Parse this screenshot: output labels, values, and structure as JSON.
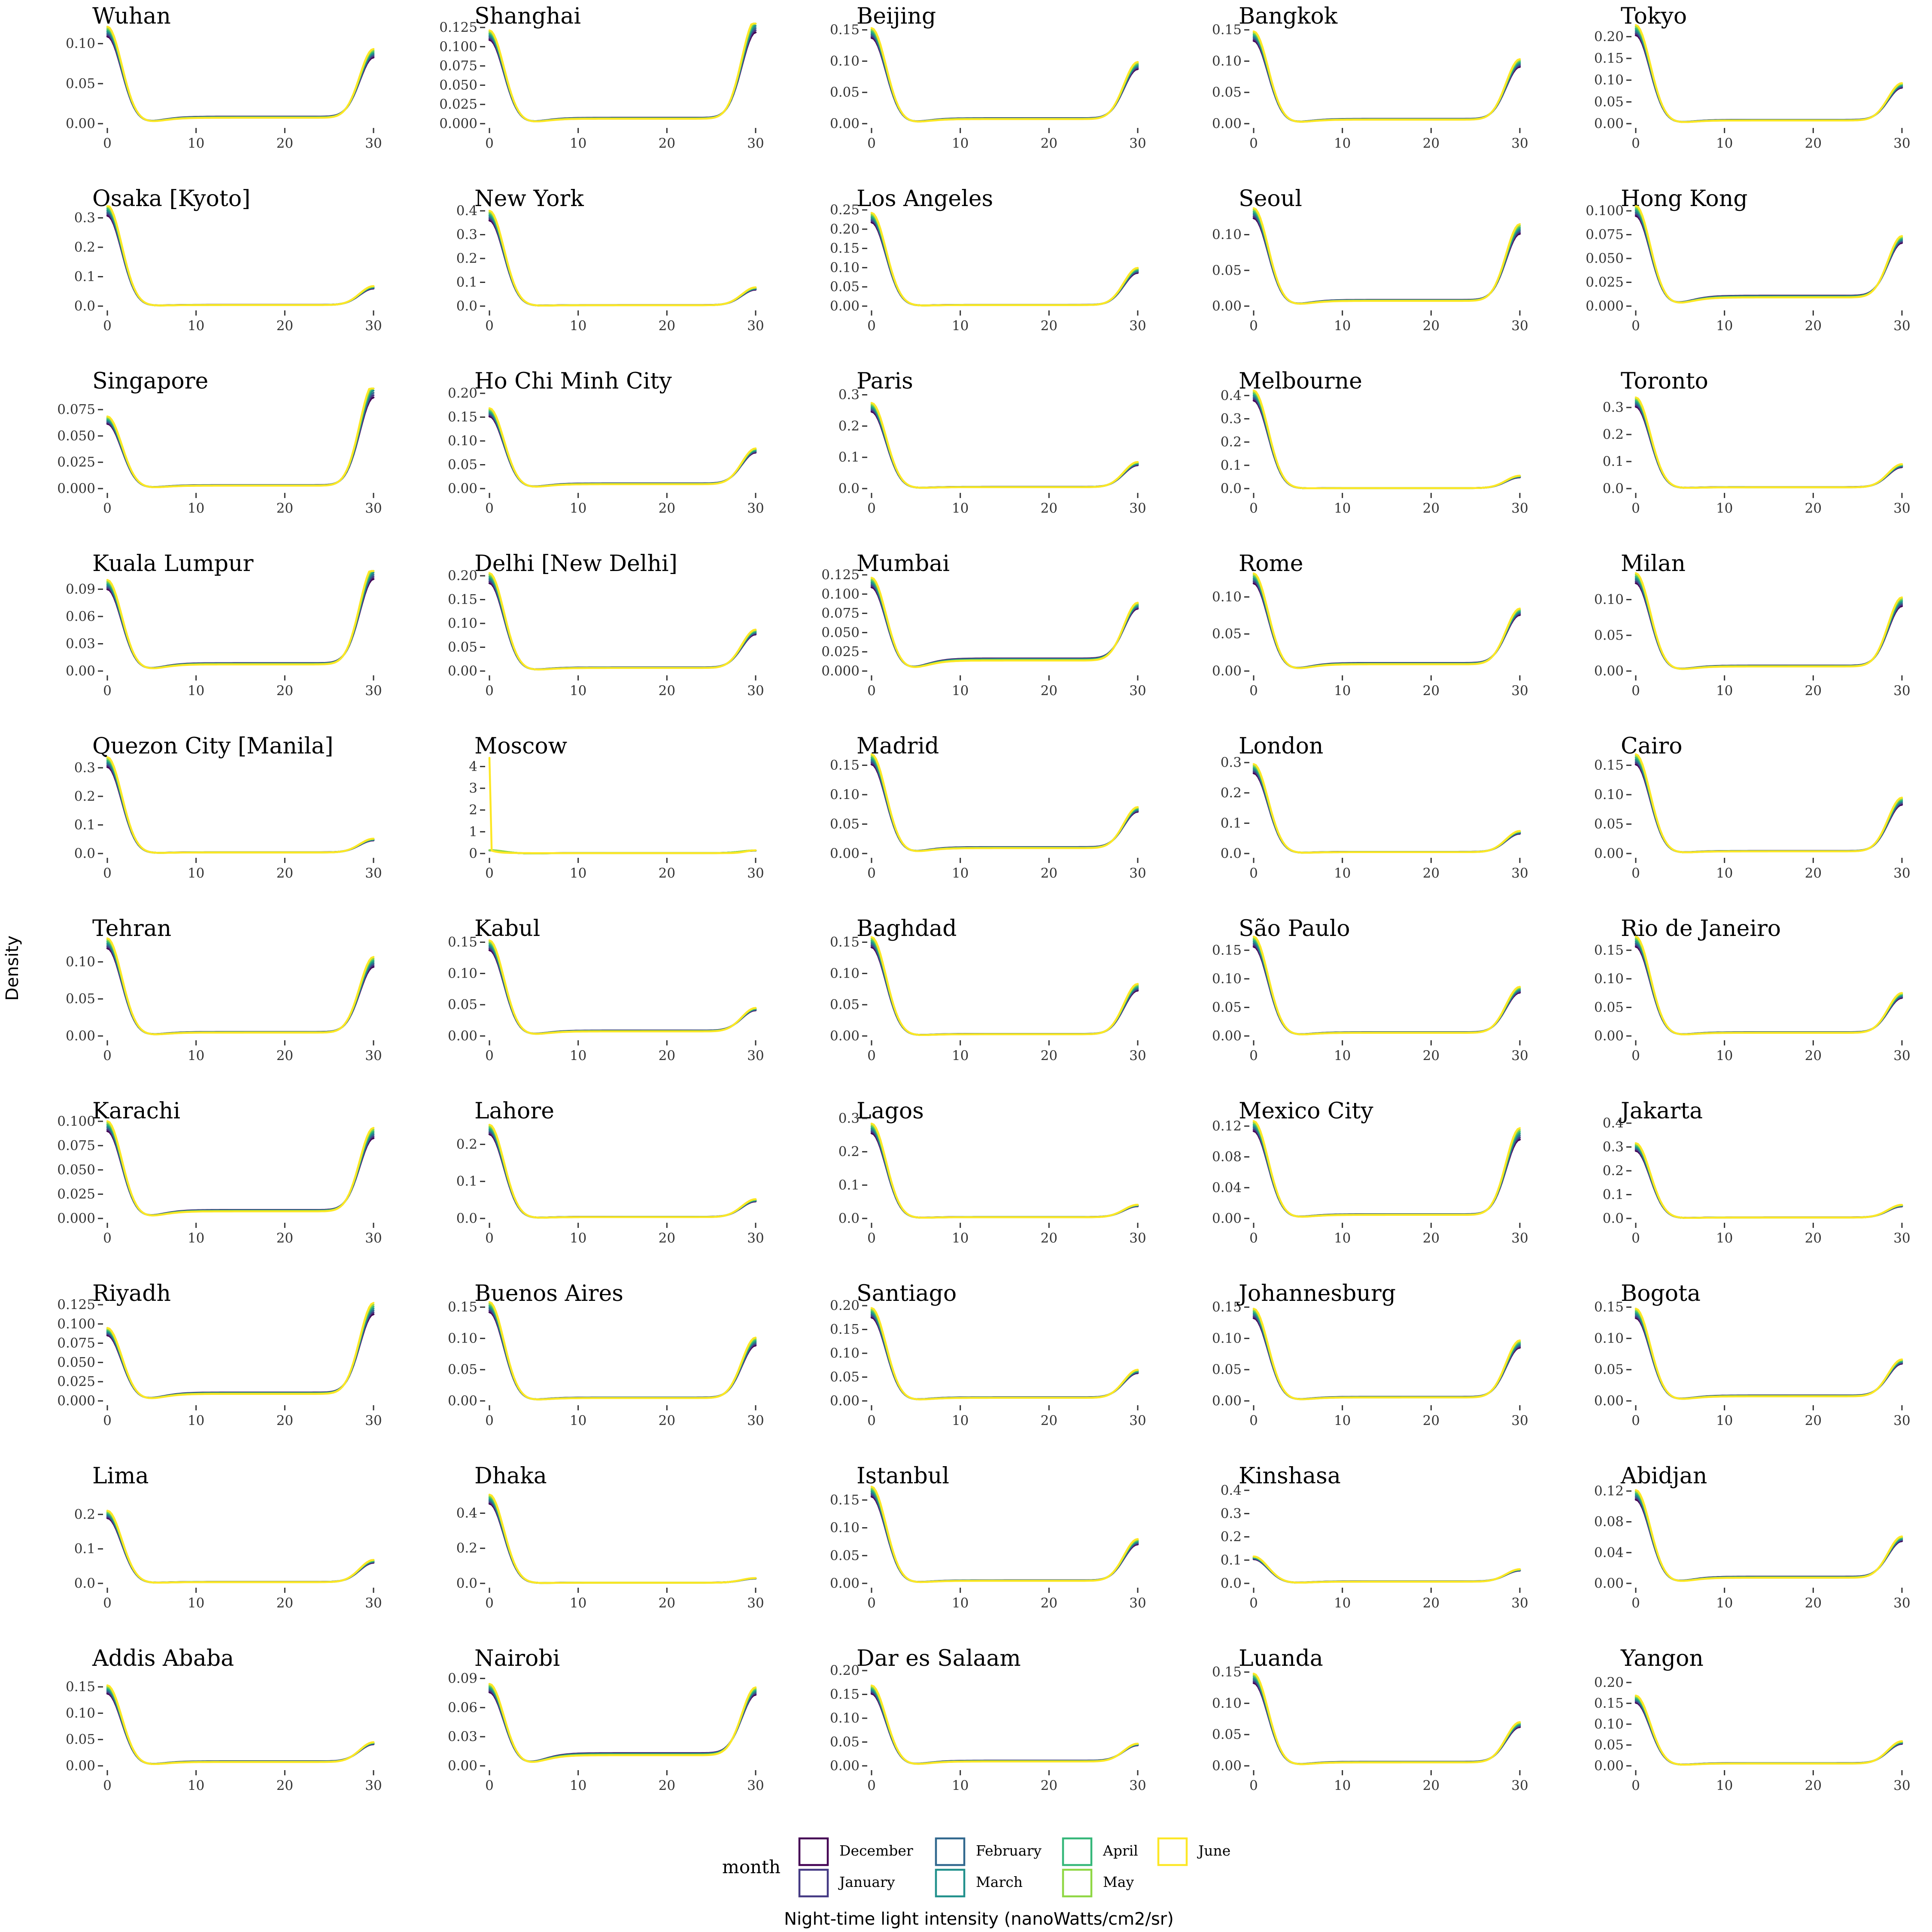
{
  "chart_data": {
    "type": "line",
    "xlabel": "Night-time light intensity (nanoWatts/cm2/sr)",
    "ylabel": "Density",
    "xlim": [
      0,
      30
    ],
    "x_ticks": [
      0,
      10,
      20,
      30
    ],
    "grid": false,
    "legend": {
      "title": "month",
      "placement": "bottom",
      "entries": [
        "December",
        "January",
        "February",
        "March",
        "April",
        "May",
        "June"
      ]
    },
    "series_colors": {
      "December": "#440154",
      "January": "#443983",
      "February": "#31688E",
      "March": "#21908C",
      "April": "#35B779",
      "May": "#8FD744",
      "June": "#FDE725"
    },
    "panels": [
      {
        "title": "Wuhan",
        "y_ticks": [
          "0.00",
          "0.05",
          "0.10"
        ],
        "ymax": 0.125,
        "left": 0.115,
        "mid": 0.008,
        "right": 0.08
      },
      {
        "title": "Shanghai",
        "y_ticks": [
          "0.000",
          "0.025",
          "0.050",
          "0.075",
          "0.100",
          "0.125"
        ],
        "ymax": 0.13,
        "left": 0.115,
        "mid": 0.007,
        "right": 0.12
      },
      {
        "title": "Beijing",
        "y_ticks": [
          "0.00",
          "0.05",
          "0.10",
          "0.15"
        ],
        "ymax": 0.16,
        "left": 0.145,
        "mid": 0.008,
        "right": 0.085
      },
      {
        "title": "Bangkok",
        "y_ticks": [
          "0.00",
          "0.05",
          "0.10",
          "0.15"
        ],
        "ymax": 0.16,
        "left": 0.14,
        "mid": 0.007,
        "right": 0.09
      },
      {
        "title": "Tokyo",
        "y_ticks": [
          "0.00",
          "0.05",
          "0.10",
          "0.15",
          "0.20"
        ],
        "ymax": 0.23,
        "left": 0.215,
        "mid": 0.008,
        "right": 0.08
      },
      {
        "title": "Osaka [Kyoto]",
        "y_ticks": [
          "0.0",
          "0.1",
          "0.2",
          "0.3"
        ],
        "ymax": 0.34,
        "left": 0.325,
        "mid": 0.004,
        "right": 0.06
      },
      {
        "title": "New York",
        "y_ticks": [
          "0.0",
          "0.1",
          "0.2",
          "0.3",
          "0.4"
        ],
        "ymax": 0.42,
        "left": 0.38,
        "mid": 0.004,
        "right": 0.07
      },
      {
        "title": "Los Angeles",
        "y_ticks": [
          "0.00",
          "0.05",
          "0.10",
          "0.15",
          "0.20",
          "0.25"
        ],
        "ymax": 0.26,
        "left": 0.23,
        "mid": 0.003,
        "right": 0.09
      },
      {
        "title": "Seoul",
        "y_ticks": [
          "0.00",
          "0.05",
          "0.10"
        ],
        "ymax": 0.14,
        "left": 0.13,
        "mid": 0.008,
        "right": 0.1
      },
      {
        "title": "Hong Kong",
        "y_ticks": [
          "0.000",
          "0.025",
          "0.050",
          "0.075",
          "0.100"
        ],
        "ymax": 0.105,
        "left": 0.1,
        "mid": 0.01,
        "right": 0.06
      },
      {
        "title": "Singapore",
        "y_ticks": [
          "0.000",
          "0.025",
          "0.050",
          "0.075"
        ],
        "ymax": 0.095,
        "left": 0.065,
        "mid": 0.003,
        "right": 0.09
      },
      {
        "title": "Ho Chi Minh City",
        "y_ticks": [
          "0.00",
          "0.05",
          "0.10",
          "0.15",
          "0.20"
        ],
        "ymax": 0.21,
        "left": 0.16,
        "mid": 0.01,
        "right": 0.07
      },
      {
        "title": "Paris",
        "y_ticks": [
          "0.0",
          "0.1",
          "0.2",
          "0.3"
        ],
        "ymax": 0.32,
        "left": 0.26,
        "mid": 0.005,
        "right": 0.075
      },
      {
        "title": "Melbourne",
        "y_ticks": [
          "0.0",
          "0.1",
          "0.2",
          "0.3",
          "0.4"
        ],
        "ymax": 0.43,
        "left": 0.4,
        "mid": 0.002,
        "right": 0.05
      },
      {
        "title": "Toronto",
        "y_ticks": [
          "0.0",
          "0.1",
          "0.2",
          "0.3"
        ],
        "ymax": 0.37,
        "left": 0.32,
        "mid": 0.005,
        "right": 0.08
      },
      {
        "title": "Kuala Lumpur",
        "y_ticks": [
          "0.00",
          "0.03",
          "0.06",
          "0.09"
        ],
        "ymax": 0.11,
        "left": 0.095,
        "mid": 0.008,
        "right": 0.1
      },
      {
        "title": "Delhi [New Delhi]",
        "y_ticks": [
          "0.00",
          "0.05",
          "0.10",
          "0.15",
          "0.20"
        ],
        "ymax": 0.21,
        "left": 0.195,
        "mid": 0.007,
        "right": 0.075
      },
      {
        "title": "Mumbai",
        "y_ticks": [
          "0.000",
          "0.025",
          "0.050",
          "0.075",
          "0.100",
          "0.125"
        ],
        "ymax": 0.13,
        "left": 0.115,
        "mid": 0.015,
        "right": 0.07
      },
      {
        "title": "Rome",
        "y_ticks": [
          "0.00",
          "0.05",
          "0.10"
        ],
        "ymax": 0.135,
        "left": 0.125,
        "mid": 0.01,
        "right": 0.07
      },
      {
        "title": "Milan",
        "y_ticks": [
          "0.00",
          "0.05",
          "0.10"
        ],
        "ymax": 0.14,
        "left": 0.13,
        "mid": 0.007,
        "right": 0.09
      },
      {
        "title": "Quezon City [Manila]",
        "y_ticks": [
          "0.0",
          "0.1",
          "0.2",
          "0.3"
        ],
        "ymax": 0.35,
        "left": 0.32,
        "mid": 0.004,
        "right": 0.045
      },
      {
        "title": "Moscow",
        "y_ticks": [
          "0",
          "1",
          "2",
          "3",
          "4"
        ],
        "ymax": 4.6,
        "left": 0.15,
        "mid": 0.02,
        "right": 0.12,
        "spike": 4.4
      },
      {
        "title": "Madrid",
        "y_ticks": [
          "0.00",
          "0.05",
          "0.10",
          "0.15"
        ],
        "ymax": 0.17,
        "left": 0.16,
        "mid": 0.01,
        "right": 0.065
      },
      {
        "title": "London",
        "y_ticks": [
          "0.0",
          "0.1",
          "0.2",
          "0.3"
        ],
        "ymax": 0.33,
        "left": 0.28,
        "mid": 0.005,
        "right": 0.065
      },
      {
        "title": "Cairo",
        "y_ticks": [
          "0.00",
          "0.05",
          "0.10",
          "0.15"
        ],
        "ymax": 0.17,
        "left": 0.16,
        "mid": 0.004,
        "right": 0.085
      },
      {
        "title": "Tehran",
        "y_ticks": [
          "0.00",
          "0.05",
          "0.10"
        ],
        "ymax": 0.135,
        "left": 0.125,
        "mid": 0.005,
        "right": 0.095
      },
      {
        "title": "Kabul",
        "y_ticks": [
          "0.00",
          "0.05",
          "0.10",
          "0.15"
        ],
        "ymax": 0.16,
        "left": 0.145,
        "mid": 0.008,
        "right": 0.035
      },
      {
        "title": "Baghdad",
        "y_ticks": [
          "0.00",
          "0.05",
          "0.10",
          "0.15"
        ],
        "ymax": 0.16,
        "left": 0.15,
        "mid": 0.003,
        "right": 0.075
      },
      {
        "title": "São Paulo",
        "y_ticks": [
          "0.00",
          "0.05",
          "0.10",
          "0.15"
        ],
        "ymax": 0.175,
        "left": 0.165,
        "mid": 0.006,
        "right": 0.075
      },
      {
        "title": "Rio de Janeiro",
        "y_ticks": [
          "0.00",
          "0.05",
          "0.10",
          "0.15"
        ],
        "ymax": 0.175,
        "left": 0.165,
        "mid": 0.006,
        "right": 0.065
      },
      {
        "title": "Karachi",
        "y_ticks": [
          "0.000",
          "0.025",
          "0.050",
          "0.075",
          "0.100"
        ],
        "ymax": 0.103,
        "left": 0.095,
        "mid": 0.008,
        "right": 0.08
      },
      {
        "title": "Lahore",
        "y_ticks": [
          "0.0",
          "0.1",
          "0.2"
        ],
        "ymax": 0.27,
        "left": 0.24,
        "mid": 0.004,
        "right": 0.045
      },
      {
        "title": "Lagos",
        "y_ticks": [
          "0.0",
          "0.1",
          "0.2",
          "0.3"
        ],
        "ymax": 0.3,
        "left": 0.27,
        "mid": 0.004,
        "right": 0.035
      },
      {
        "title": "Mexico City",
        "y_ticks": [
          "0.00",
          "0.04",
          "0.08",
          "0.12"
        ],
        "ymax": 0.13,
        "left": 0.12,
        "mid": 0.005,
        "right": 0.105
      },
      {
        "title": "Jakarta",
        "y_ticks": [
          "0.0",
          "0.1",
          "0.2",
          "0.3",
          "0.4"
        ],
        "ymax": 0.42,
        "left": 0.3,
        "mid": 0.004,
        "right": 0.05
      },
      {
        "title": "Riyadh",
        "y_ticks": [
          "0.000",
          "0.025",
          "0.050",
          "0.075",
          "0.100",
          "0.125"
        ],
        "ymax": 0.13,
        "left": 0.09,
        "mid": 0.01,
        "right": 0.11
      },
      {
        "title": "Buenos Aires",
        "y_ticks": [
          "0.00",
          "0.05",
          "0.10",
          "0.15"
        ],
        "ymax": 0.16,
        "left": 0.15,
        "mid": 0.005,
        "right": 0.09
      },
      {
        "title": "Santiago",
        "y_ticks": [
          "0.00",
          "0.05",
          "0.10",
          "0.15",
          "0.20"
        ],
        "ymax": 0.21,
        "left": 0.185,
        "mid": 0.007,
        "right": 0.055
      },
      {
        "title": "Johannesburg",
        "y_ticks": [
          "0.00",
          "0.05",
          "0.10",
          "0.15"
        ],
        "ymax": 0.16,
        "left": 0.14,
        "mid": 0.006,
        "right": 0.085
      },
      {
        "title": "Bogota",
        "y_ticks": [
          "0.00",
          "0.05",
          "0.10",
          "0.15"
        ],
        "ymax": 0.16,
        "left": 0.14,
        "mid": 0.008,
        "right": 0.055
      },
      {
        "title": "Lima",
        "y_ticks": [
          "0.0",
          "0.1",
          "0.2"
        ],
        "ymax": 0.29,
        "left": 0.2,
        "mid": 0.004,
        "right": 0.06
      },
      {
        "title": "Dhaka",
        "y_ticks": [
          "0.0",
          "0.2",
          "0.4"
        ],
        "ymax": 0.57,
        "left": 0.48,
        "mid": 0.004,
        "right": 0.025
      },
      {
        "title": "Istanbul",
        "y_ticks": [
          "0.00",
          "0.05",
          "0.10",
          "0.15"
        ],
        "ymax": 0.18,
        "left": 0.165,
        "mid": 0.005,
        "right": 0.07
      },
      {
        "title": "Kinshasa",
        "y_ticks": [
          "0.0",
          "0.1",
          "0.2",
          "0.3",
          "0.4"
        ],
        "ymax": 0.43,
        "left": 0.11,
        "mid": 0.008,
        "right": 0.05
      },
      {
        "title": "Abidjan",
        "y_ticks": [
          "0.00",
          "0.04",
          "0.08",
          "0.12"
        ],
        "ymax": 0.13,
        "left": 0.115,
        "mid": 0.008,
        "right": 0.05
      },
      {
        "title": "Addis Ababa",
        "y_ticks": [
          "0.00",
          "0.05",
          "0.10",
          "0.15"
        ],
        "ymax": 0.19,
        "left": 0.145,
        "mid": 0.008,
        "right": 0.035
      },
      {
        "title": "Nairobi",
        "y_ticks": [
          "0.00",
          "0.03",
          "0.06",
          "0.09"
        ],
        "ymax": 0.103,
        "left": 0.08,
        "mid": 0.012,
        "right": 0.065
      },
      {
        "title": "Dar es Salaam",
        "y_ticks": [
          "0.00",
          "0.05",
          "0.10",
          "0.15",
          "0.20"
        ],
        "ymax": 0.21,
        "left": 0.16,
        "mid": 0.01,
        "right": 0.035
      },
      {
        "title": "Luanda",
        "y_ticks": [
          "0.00",
          "0.05",
          "0.10",
          "0.15"
        ],
        "ymax": 0.16,
        "left": 0.14,
        "mid": 0.006,
        "right": 0.06
      },
      {
        "title": "Yangon",
        "y_ticks": [
          "0.00",
          "0.05",
          "0.10",
          "0.15",
          "0.20"
        ],
        "ymax": 0.24,
        "left": 0.16,
        "mid": 0.006,
        "right": 0.05
      }
    ]
  }
}
